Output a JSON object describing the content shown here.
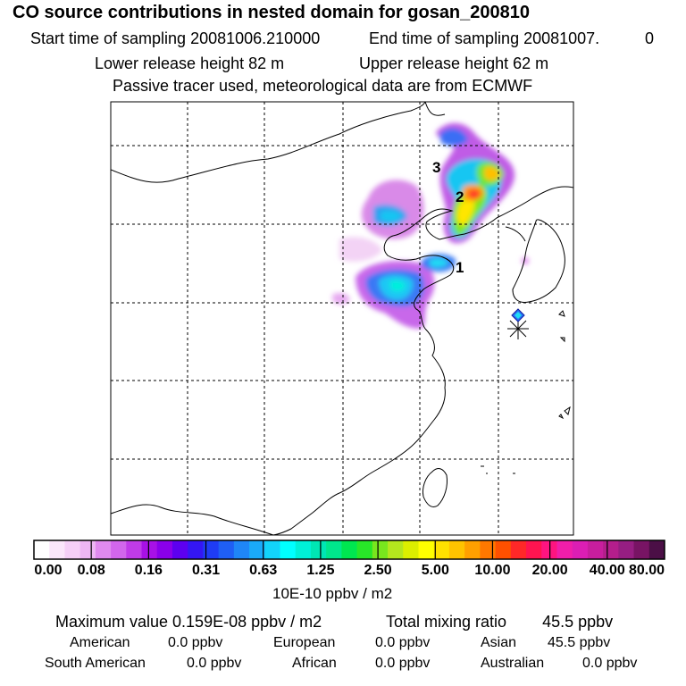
{
  "header": {
    "title": "CO  source contributions in nested domain for gosan_200810",
    "start_time": "Start time of sampling 20081006.210000",
    "end_time": "End time of sampling 20081007.",
    "end_time_suffix": "0",
    "lower_height": "Lower release height   82 m",
    "upper_height": "Upper release height   62 m",
    "tracer_note": "Passive tracer used, meteorological data are from ECMWF"
  },
  "map": {
    "labels": [
      "3",
      "2",
      "1"
    ],
    "receptor_marker": "asterisk-icon"
  },
  "colorbar": {
    "ticks": [
      "0.00",
      "0.08",
      "0.16",
      "0.31",
      "0.63",
      "1.25",
      "2.50",
      "5.00",
      "10.00",
      "20.00",
      "40.00",
      "80.00"
    ],
    "unit": "10E-10 ppbv / m2",
    "colors": [
      "#ffffff",
      "#fbe6fb",
      "#f5cff7",
      "#eeb6f4",
      "#e08aef",
      "#d266ec",
      "#c03be8",
      "#a811e6",
      "#8a00ea",
      "#5d00f0",
      "#3416f4",
      "#1f3cf5",
      "#1f5ff5",
      "#1f86f7",
      "#1aaaf9",
      "#12d4fa",
      "#00ffff",
      "#00f0d8",
      "#00e6b4",
      "#00e68c",
      "#00e650",
      "#28e628",
      "#78e61e",
      "#b4e61e",
      "#dcef00",
      "#ffff00",
      "#ffe100",
      "#ffc300",
      "#ffa000",
      "#ff7800",
      "#ff5000",
      "#ff2828",
      "#ff1450",
      "#ff1480",
      "#f01eaa",
      "#dc1eb4",
      "#c81e9e",
      "#b41e8c",
      "#961e82",
      "#781464",
      "#4b0f46"
    ]
  },
  "summary": {
    "max_label": "Maximum value  0.159E-08 ppbv / m2",
    "total_label": "Total mixing ratio",
    "total_value": "45.5 ppbv",
    "regions": [
      {
        "name": "American",
        "value": "0.0 ppbv"
      },
      {
        "name": "European",
        "value": "0.0 ppbv"
      },
      {
        "name": "Asian",
        "value": "45.5 ppbv"
      },
      {
        "name": "South American",
        "value": "0.0 ppbv"
      },
      {
        "name": "African",
        "value": "0.0 ppbv"
      },
      {
        "name": "Australian",
        "value": "0.0 ppbv"
      }
    ]
  }
}
